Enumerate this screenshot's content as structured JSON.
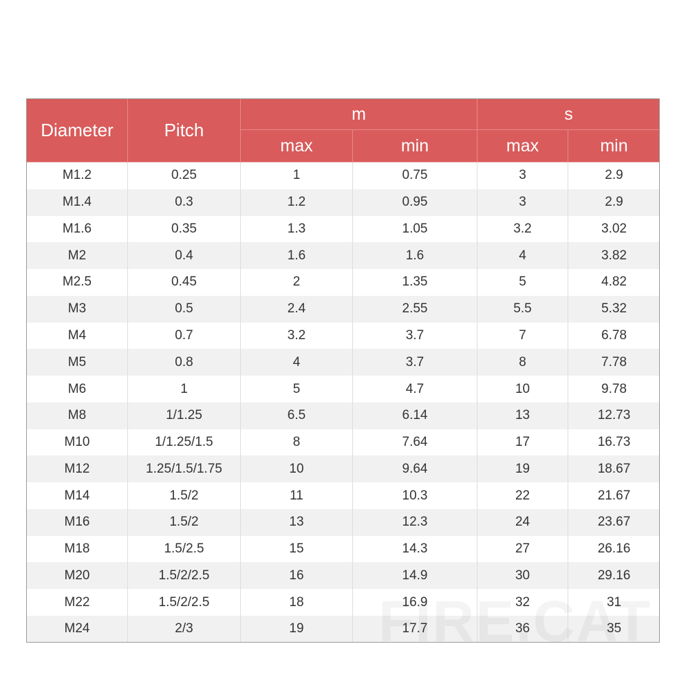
{
  "table": {
    "header": {
      "diameter": "Diameter",
      "pitch": "Pitch",
      "m": "m",
      "s": "s",
      "m_max": "max",
      "m_min": "min",
      "s_max": "max",
      "s_min": "min"
    },
    "rows": [
      [
        "M1.2",
        "0.25",
        "1",
        "0.75",
        "3",
        "2.9"
      ],
      [
        "M1.4",
        "0.3",
        "1.2",
        "0.95",
        "3",
        "2.9"
      ],
      [
        "M1.6",
        "0.35",
        "1.3",
        "1.05",
        "3.2",
        "3.02"
      ],
      [
        "M2",
        "0.4",
        "1.6",
        "1.6",
        "4",
        "3.82"
      ],
      [
        "M2.5",
        "0.45",
        "2",
        "1.35",
        "5",
        "4.82"
      ],
      [
        "M3",
        "0.5",
        "2.4",
        "2.55",
        "5.5",
        "5.32"
      ],
      [
        "M4",
        "0.7",
        "3.2",
        "3.7",
        "7",
        "6.78"
      ],
      [
        "M5",
        "0.8",
        "4",
        "3.7",
        "8",
        "7.78"
      ],
      [
        "M6",
        "1",
        "5",
        "4.7",
        "10",
        "9.78"
      ],
      [
        "M8",
        "1/1.25",
        "6.5",
        "6.14",
        "13",
        "12.73"
      ],
      [
        "M10",
        "1/1.25/1.5",
        "8",
        "7.64",
        "17",
        "16.73"
      ],
      [
        "M12",
        "1.25/1.5/1.75",
        "10",
        "9.64",
        "19",
        "18.67"
      ],
      [
        "M14",
        "1.5/2",
        "11",
        "10.3",
        "22",
        "21.67"
      ],
      [
        "M16",
        "1.5/2",
        "13",
        "12.3",
        "24",
        "23.67"
      ],
      [
        "M18",
        "1.5/2.5",
        "15",
        "14.3",
        "27",
        "26.16"
      ],
      [
        "M20",
        "1.5/2/2.5",
        "16",
        "14.9",
        "30",
        "29.16"
      ],
      [
        "M22",
        "1.5/2/2.5",
        "18",
        "16.9",
        "32",
        "31"
      ],
      [
        "M24",
        "2/3",
        "19",
        "17.7",
        "36",
        "35"
      ]
    ]
  },
  "watermark": "FIRE.CAT"
}
